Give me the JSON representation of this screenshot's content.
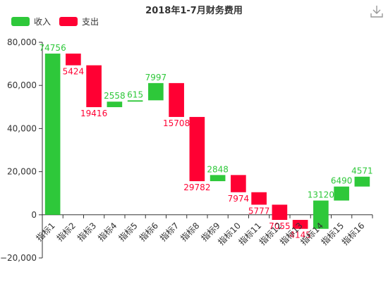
{
  "toolbar": {
    "download_icon": "download-icon"
  },
  "legend": [
    {
      "label": "收入",
      "color": "#2ec83a"
    },
    {
      "label": "支出",
      "color": "#ff0033"
    }
  ],
  "chart_data": {
    "type": "bar",
    "title": "2018年1-7月财务费用",
    "subtype": "waterfall",
    "categories": [
      "指标1",
      "指标2",
      "指标3",
      "指标4",
      "指标5",
      "指标6",
      "指标7",
      "指标8",
      "指标9",
      "指标10",
      "指标11",
      "指标12",
      "指标13",
      "指标14",
      "指标15",
      "指标16"
    ],
    "series": [
      {
        "name": "收入",
        "color": "#2ec83a",
        "values": [
          74756,
          null,
          null,
          2558,
          615,
          7997,
          null,
          null,
          2848,
          null,
          null,
          null,
          null,
          13120,
          6490,
          4571
        ]
      },
      {
        "name": "支出",
        "color": "#ff0033",
        "values": [
          null,
          5424,
          19416,
          null,
          null,
          null,
          15708,
          29782,
          null,
          7974,
          5777,
          7055,
          4145,
          null,
          null,
          null
        ]
      }
    ],
    "ylim": [
      -20000,
      80000
    ],
    "yticks": [
      -20000,
      0,
      20000,
      40000,
      60000,
      80000
    ],
    "ytick_labels": [
      "−20,000",
      "0",
      "20,000",
      "40,000",
      "60,000",
      "80,000"
    ],
    "grid": false,
    "legend_position": "top-left"
  }
}
